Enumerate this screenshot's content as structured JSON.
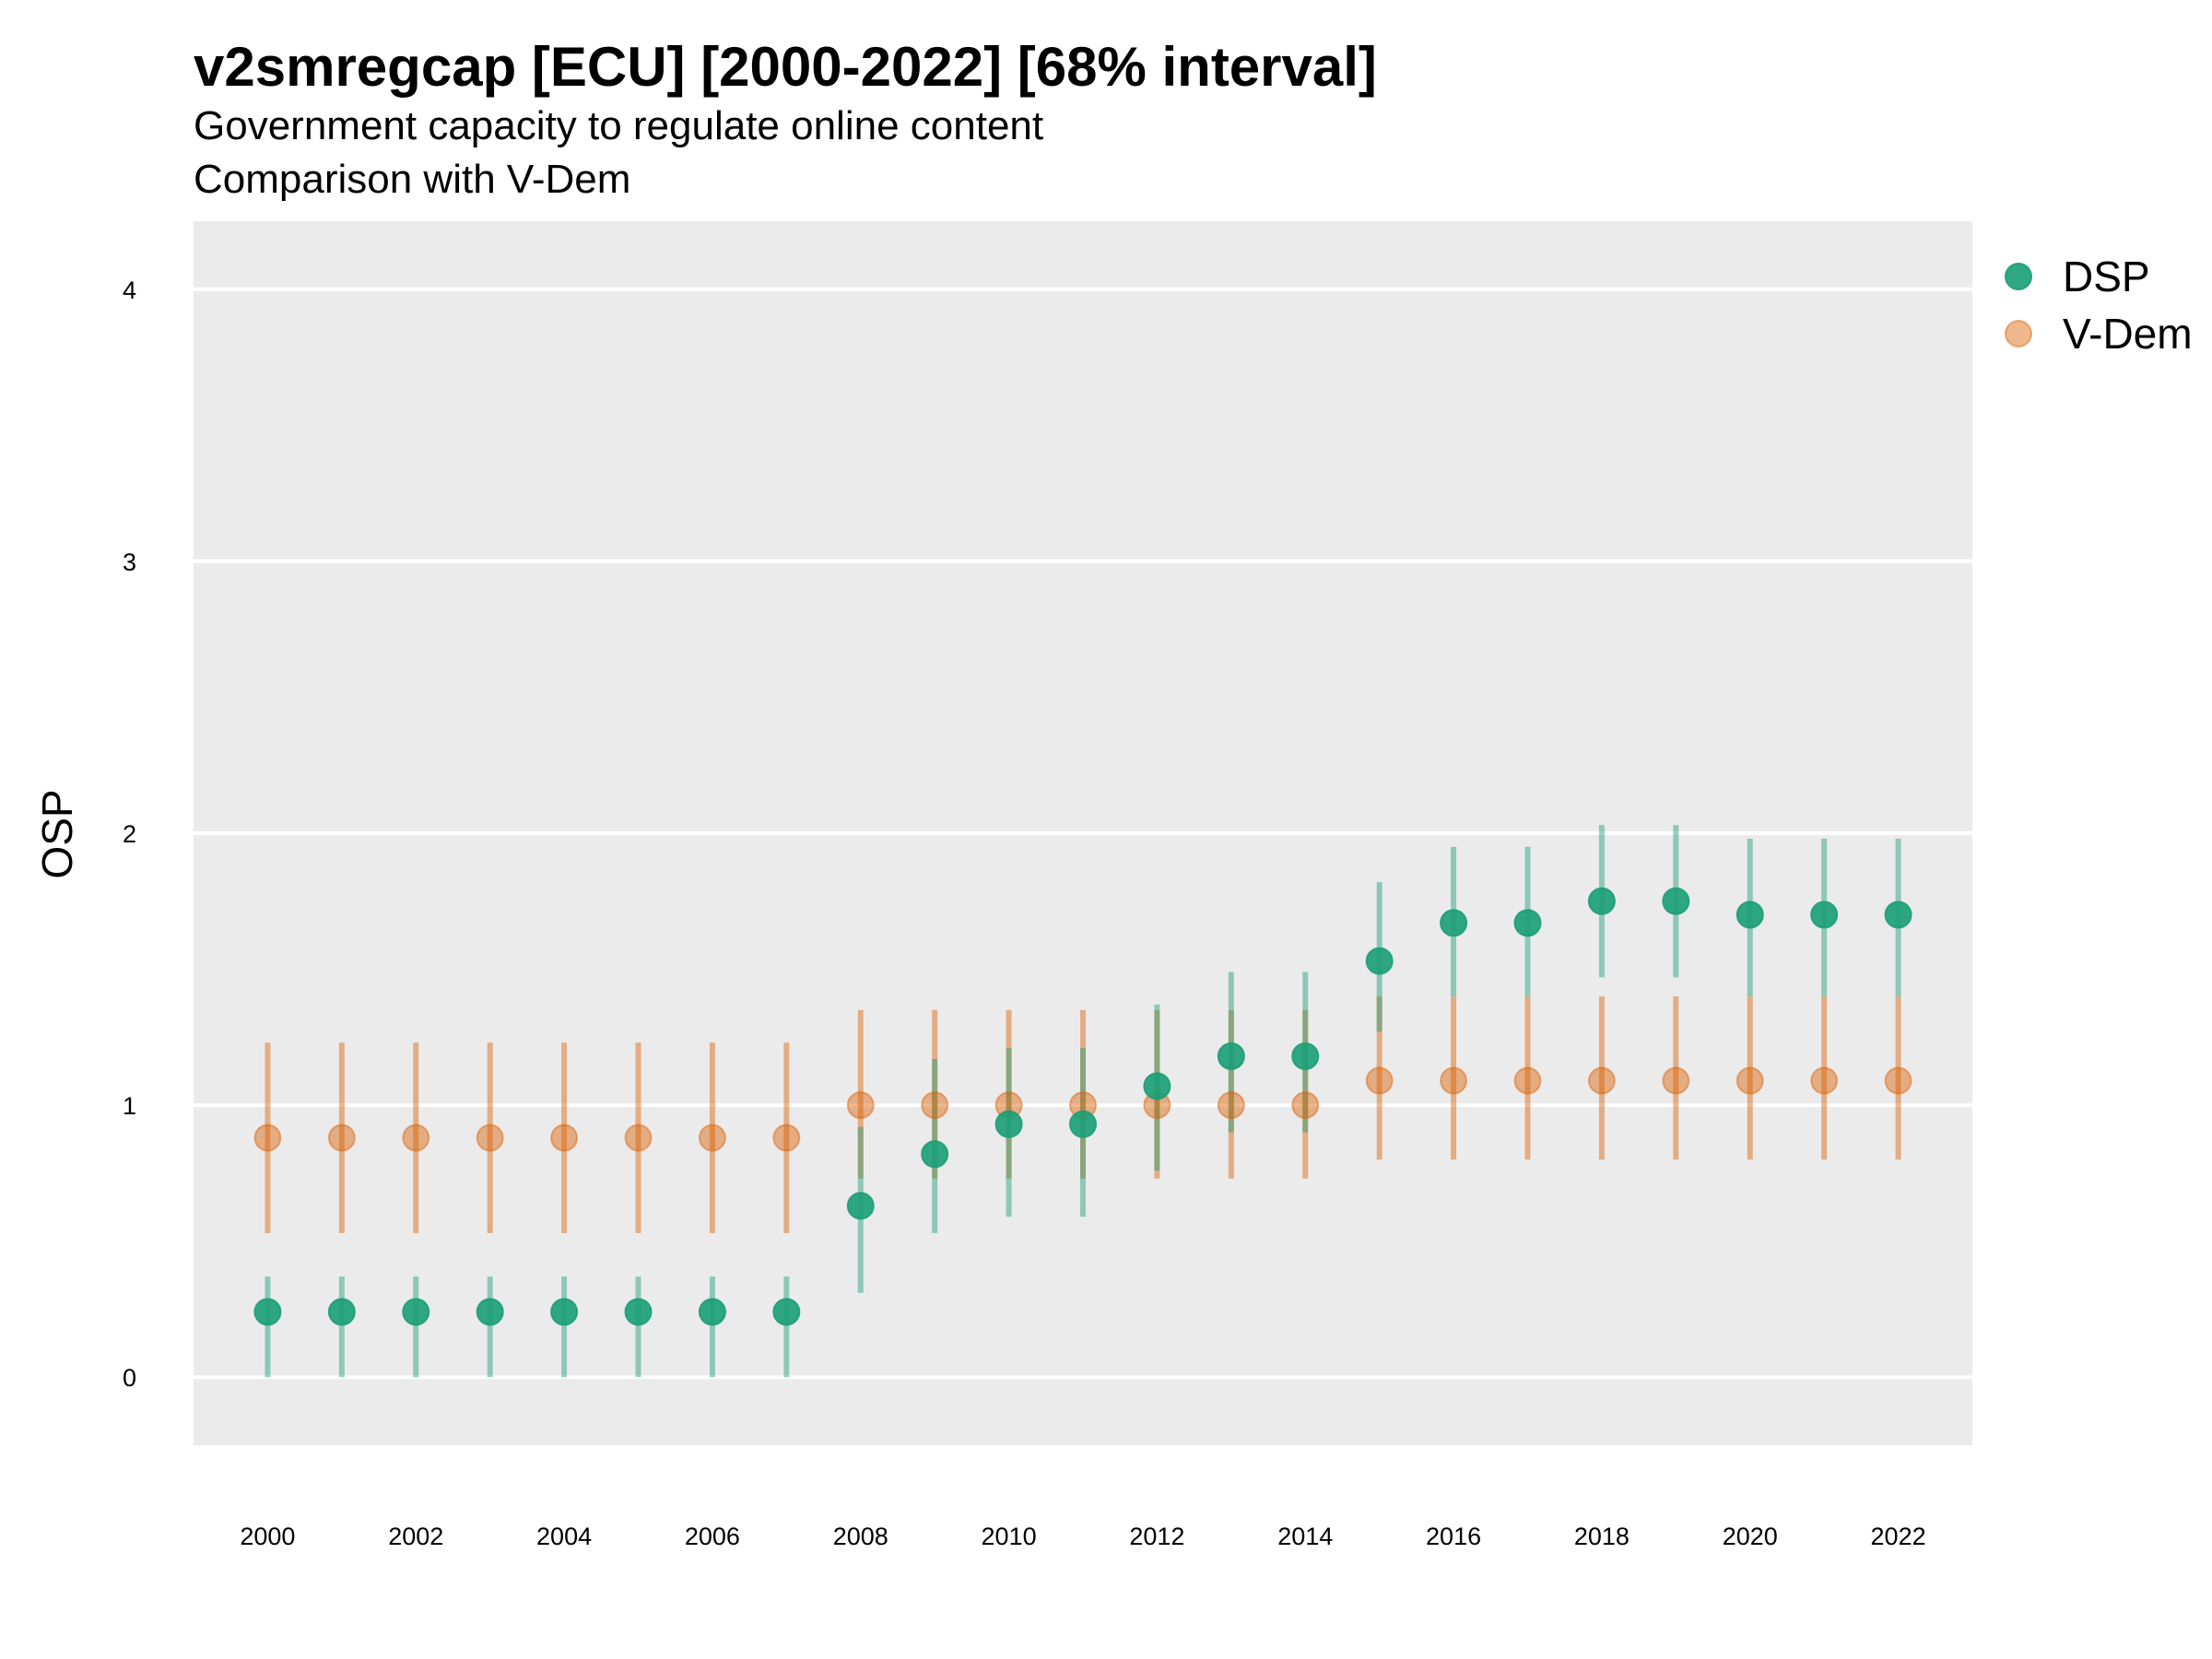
{
  "chart_data": {
    "type": "scatter",
    "title": "v2smregcap [ECU] [2000-2022] [68% interval]",
    "subtitle": [
      "Government capacity to regulate online content",
      "Comparison with V-Dem"
    ],
    "xlabel": "",
    "ylabel": "OSP",
    "xlim": [
      1999,
      2023
    ],
    "ylim": [
      -0.25,
      4.25
    ],
    "x_ticks": [
      2000,
      2002,
      2004,
      2006,
      2008,
      2010,
      2012,
      2014,
      2016,
      2018,
      2020,
      2022
    ],
    "y_ticks": [
      0,
      1,
      2,
      3,
      4
    ],
    "grid": true,
    "legend_position": "right",
    "x": [
      2000,
      2001,
      2002,
      2003,
      2004,
      2005,
      2006,
      2007,
      2008,
      2009,
      2010,
      2011,
      2012,
      2013,
      2014,
      2015,
      2016,
      2017,
      2018,
      2019,
      2020,
      2021,
      2022
    ],
    "series": [
      {
        "name": "DSP",
        "color": "#1b9e77",
        "values": [
          0.24,
          0.24,
          0.24,
          0.24,
          0.24,
          0.24,
          0.24,
          0.24,
          0.63,
          0.82,
          0.93,
          0.93,
          1.07,
          1.18,
          1.18,
          1.53,
          1.67,
          1.67,
          1.75,
          1.75,
          1.7,
          1.7,
          1.7
        ],
        "lower": [
          0.0,
          0.0,
          0.0,
          0.0,
          0.0,
          0.0,
          0.0,
          0.0,
          0.31,
          0.53,
          0.59,
          0.59,
          0.76,
          0.9,
          0.9,
          1.27,
          1.4,
          1.4,
          1.47,
          1.47,
          1.4,
          1.4,
          1.4
        ],
        "upper": [
          0.37,
          0.37,
          0.37,
          0.37,
          0.37,
          0.37,
          0.37,
          0.37,
          0.92,
          1.17,
          1.21,
          1.21,
          1.37,
          1.49,
          1.49,
          1.82,
          1.95,
          1.95,
          2.03,
          2.03,
          1.98,
          1.98,
          1.98
        ]
      },
      {
        "name": "V-Dem",
        "color": "#d95f02",
        "values": [
          0.88,
          0.88,
          0.88,
          0.88,
          0.88,
          0.88,
          0.88,
          0.88,
          1.0,
          1.0,
          1.0,
          1.0,
          1.0,
          1.0,
          1.0,
          1.09,
          1.09,
          1.09,
          1.09,
          1.09,
          1.09,
          1.09,
          1.09
        ],
        "lower": [
          0.53,
          0.53,
          0.53,
          0.53,
          0.53,
          0.53,
          0.53,
          0.53,
          0.73,
          0.73,
          0.73,
          0.73,
          0.73,
          0.73,
          0.73,
          0.8,
          0.8,
          0.8,
          0.8,
          0.8,
          0.8,
          0.8,
          0.8
        ],
        "upper": [
          1.23,
          1.23,
          1.23,
          1.23,
          1.23,
          1.23,
          1.23,
          1.23,
          1.35,
          1.35,
          1.35,
          1.35,
          1.35,
          1.35,
          1.35,
          1.4,
          1.4,
          1.4,
          1.4,
          1.4,
          1.4,
          1.4,
          1.4
        ]
      }
    ]
  }
}
